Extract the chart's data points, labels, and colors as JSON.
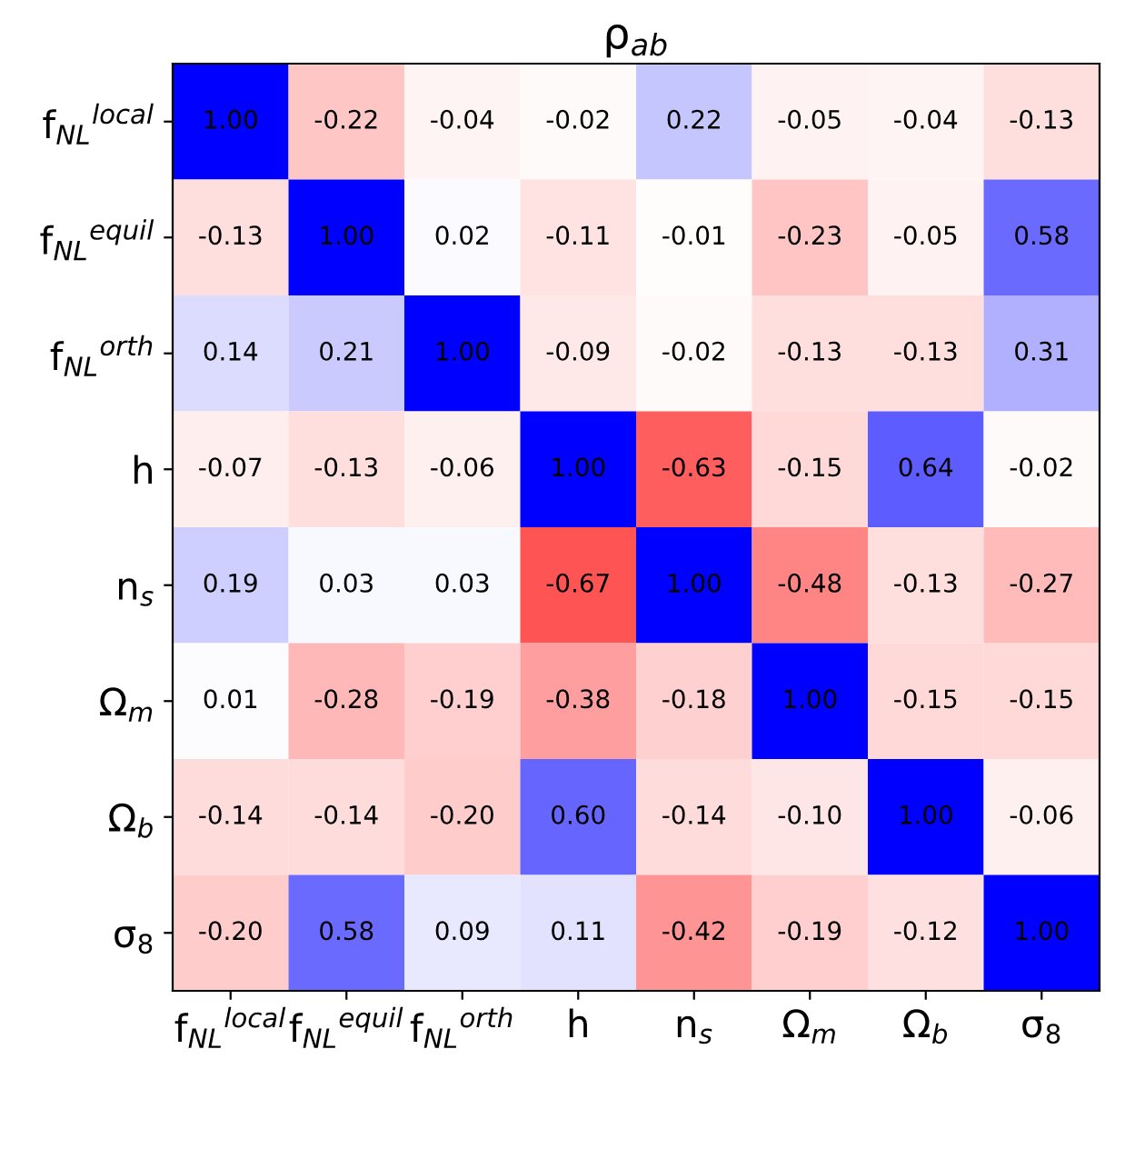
{
  "chart_data": {
    "type": "heatmap",
    "title": "ρ$_{ab}$",
    "categories": [
      "f$_{NL}$$^{local}$",
      "f$_{NL}$$^{equil}$",
      "f$_{NL}$$^{orth}$",
      "h",
      "n$_{s}$",
      "Ω$_{m}$",
      "Ω$_{b}$",
      "σ$_{8}$"
    ],
    "y_categories": [
      "f$_{NL}$$^{local}$",
      "f$_{NL}$$^{equil}$",
      "f$_{NL}$$^{orth}$",
      "h",
      "n$_{s}$",
      "Ω$_{m}$",
      "Ω$_{b}$",
      "σ$_{8}$"
    ],
    "colors": [
      "#ff0000",
      "#ffffff",
      "#0000ff"
    ],
    "cells": [
      [
        1.0,
        -0.22,
        -0.04,
        -0.02,
        0.22,
        -0.05,
        -0.04,
        -0.13
      ],
      [
        -0.13,
        1.0,
        0.02,
        -0.11,
        -0.01,
        -0.23,
        -0.05,
        0.58
      ],
      [
        0.14,
        0.21,
        1.0,
        -0.09,
        -0.02,
        -0.13,
        -0.13,
        0.31
      ],
      [
        -0.07,
        -0.13,
        -0.06,
        1.0,
        -0.63,
        -0.15,
        0.64,
        -0.02
      ],
      [
        0.19,
        0.03,
        0.03,
        -0.67,
        1.0,
        -0.48,
        -0.13,
        -0.27
      ],
      [
        0.01,
        -0.28,
        -0.19,
        -0.38,
        -0.18,
        1.0,
        -0.15,
        -0.15
      ],
      [
        -0.14,
        -0.14,
        -0.2,
        0.6,
        -0.14,
        -0.1,
        1.0,
        -0.06
      ],
      [
        -0.2,
        0.58,
        0.09,
        0.11,
        -0.42,
        -0.19,
        -0.12,
        1.0
      ]
    ],
    "cell_labels": [
      [
        "1.00",
        "-0.22",
        "-0.04",
        "-0.02",
        "0.22",
        "-0.05",
        "-0.04",
        "-0.13"
      ],
      [
        "-0.13",
        "1.00",
        "0.02",
        "-0.11",
        "-0.01",
        "-0.23",
        "-0.05",
        "0.58"
      ],
      [
        "0.14",
        "0.21",
        "1.00",
        "-0.09",
        "-0.02",
        "-0.13",
        "-0.13",
        "0.31"
      ],
      [
        "-0.07",
        "-0.13",
        "-0.06",
        "1.00",
        "-0.63",
        "-0.15",
        "0.64",
        "-0.02"
      ],
      [
        "0.19",
        "0.03",
        "0.03",
        "-0.67",
        "1.00",
        "-0.48",
        "-0.13",
        "-0.27"
      ],
      [
        "0.01",
        "-0.28",
        "-0.19",
        "-0.38",
        "-0.18",
        "1.00",
        "-0.15",
        "-0.15"
      ],
      [
        "-0.14",
        "-0.14",
        "-0.20",
        "0.60",
        "-0.14",
        "-0.10",
        "1.00",
        "-0.06"
      ],
      [
        "-0.20",
        "0.58",
        "0.09",
        "0.11",
        "-0.42",
        "-0.19",
        "-0.12",
        "1.00"
      ]
    ]
  }
}
